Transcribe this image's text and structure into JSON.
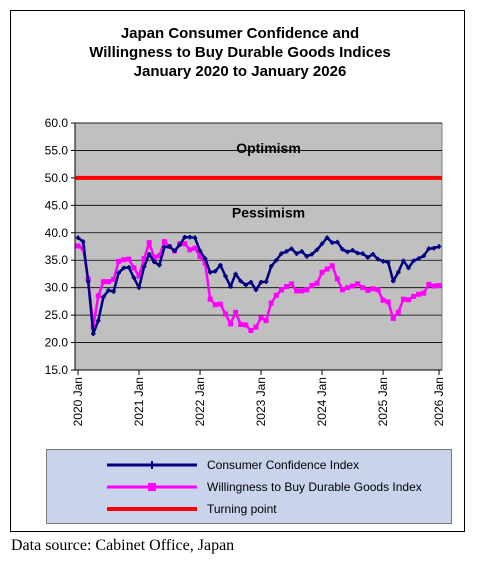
{
  "chart_data": {
    "type": "line",
    "title_lines": [
      "Japan Consumer Confidence and",
      "Willingness to Buy Durable Goods Indices",
      "January 2020 to January 2026"
    ],
    "ylim": [
      15,
      60
    ],
    "yticks": [
      "60.0",
      "55.0",
      "50.0",
      "45.0",
      "40.0",
      "35.0",
      "30.0",
      "25.0",
      "20.0",
      "15.0"
    ],
    "x_tick_labels": [
      "2020 Jan",
      "2021 Jan",
      "2022 Jan",
      "2023 Jan",
      "2024 Jan",
      "2025 Jan",
      "2026 Jan"
    ],
    "annotations": {
      "upper": "Optimism",
      "lower": "Pessimism"
    },
    "threshold": {
      "name": "Turning point",
      "value": 50,
      "color": "#ff0000"
    },
    "legend_position": "bottom",
    "grid": true,
    "series": [
      {
        "name": "Consumer Confidence Index",
        "color": "#000080",
        "values": [
          39.1,
          38.4,
          31.1,
          21.6,
          24.0,
          28.3,
          29.5,
          29.3,
          32.7,
          33.6,
          33.7,
          31.8,
          30.0,
          33.8,
          36.1,
          34.7,
          34.1,
          37.4,
          37.5,
          36.7,
          37.8,
          39.2,
          39.2,
          39.1,
          36.7,
          35.3,
          32.8,
          33.0,
          34.1,
          32.1,
          30.2,
          32.5,
          31.2,
          30.5,
          31.0,
          29.6,
          31.0,
          31.1,
          33.9,
          35.0,
          36.2,
          36.6,
          37.1,
          36.2,
          36.6,
          35.7,
          36.1,
          36.9,
          38.0,
          39.1,
          38.2,
          38.3,
          37.0,
          36.5,
          36.8,
          36.3,
          36.2,
          35.5,
          36.1,
          35.2,
          34.8,
          34.6,
          31.2,
          32.8,
          34.9,
          33.6,
          34.9,
          35.3,
          35.8,
          37.1,
          37.2,
          37.5
        ]
      },
      {
        "name": "Willingness to Buy Durable Goods Index",
        "color": "#ff00ff",
        "values": [
          37.6,
          37.2,
          31.6,
          22.9,
          28.5,
          31.1,
          31.1,
          31.5,
          34.8,
          35.1,
          35.2,
          33.6,
          32.1,
          35.3,
          38.2,
          35.5,
          35.8,
          38.4,
          37.5,
          36.7,
          38.0,
          38.0,
          36.9,
          37.2,
          35.7,
          34.5,
          27.9,
          26.9,
          27.0,
          25.2,
          23.4,
          25.5,
          23.3,
          23.2,
          22.2,
          22.8,
          24.5,
          24.0,
          27.2,
          28.6,
          29.6,
          30.2,
          30.7,
          29.4,
          29.4,
          29.6,
          30.4,
          30.8,
          32.8,
          33.4,
          34.0,
          31.6,
          29.6,
          30.0,
          30.3,
          30.7,
          30.0,
          29.5,
          29.8,
          29.6,
          27.7,
          27.4,
          24.4,
          25.5,
          27.9,
          27.8,
          28.4,
          28.8,
          29.0,
          30.6,
          30.3,
          30.4
        ]
      }
    ]
  },
  "source_text": "Data source: Cabinet Office, Japan"
}
